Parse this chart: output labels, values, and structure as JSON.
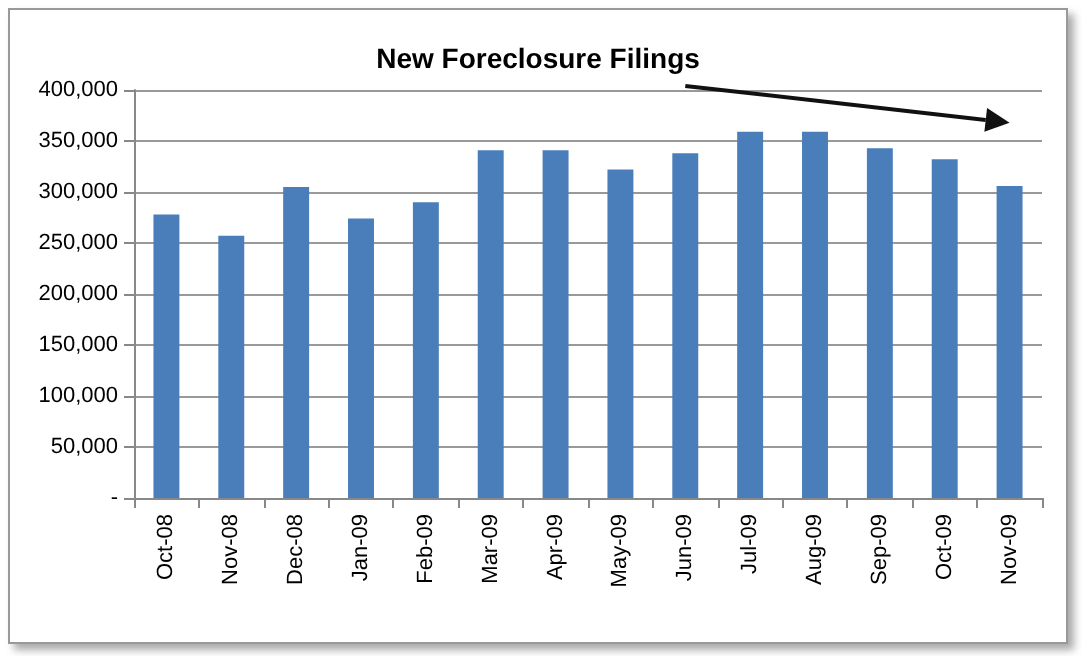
{
  "chart_data": {
    "type": "bar",
    "title": "New Foreclosure Filings",
    "categories": [
      "Oct-08",
      "Nov-08",
      "Dec-08",
      "Jan-09",
      "Feb-09",
      "Mar-09",
      "Apr-09",
      "May-09",
      "Jun-09",
      "Jul-09",
      "Aug-09",
      "Sep-09",
      "Oct-09",
      "Nov-09"
    ],
    "values": [
      278000,
      257000,
      305000,
      274000,
      290000,
      341000,
      341000,
      322000,
      338000,
      359000,
      359000,
      343000,
      332000,
      306000
    ],
    "color": "#4a7ebb",
    "ylim": [
      0,
      400000
    ],
    "yticks": [
      {
        "value": 0,
        "label": "-"
      },
      {
        "value": 50000,
        "label": "50,000"
      },
      {
        "value": 100000,
        "label": "100,000"
      },
      {
        "value": 150000,
        "label": "150,000"
      },
      {
        "value": 200000,
        "label": "200,000"
      },
      {
        "value": 250000,
        "label": "250,000"
      },
      {
        "value": 300000,
        "label": "300,000"
      },
      {
        "value": 350000,
        "label": "350,000"
      },
      {
        "value": 400000,
        "label": "400,000"
      }
    ],
    "grid": "y"
  }
}
